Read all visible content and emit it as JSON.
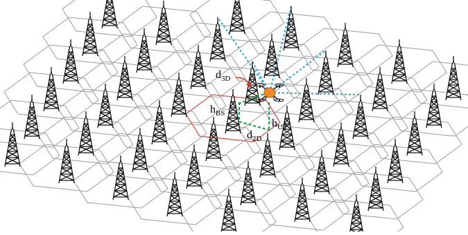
{
  "labels": {
    "d3d": {
      "main": "d",
      "sub": "3D"
    },
    "hbs": {
      "main": "h",
      "sub": "BS"
    },
    "hut": {
      "main": "h",
      "sub": "UT"
    },
    "d2d": {
      "main": "d",
      "sub": "2D"
    }
  },
  "colors": {
    "cell_border": "#9a9a9a",
    "serving_cell_border": "#d9534f",
    "interference_link": "#3ba7cf",
    "serving_link": "#1f9e4a",
    "tower": "#111111",
    "drone_body": "#f08a24",
    "arrow": "#c0392b"
  },
  "icons": [
    "base-station-tower-icon",
    "drone-icon"
  ]
}
